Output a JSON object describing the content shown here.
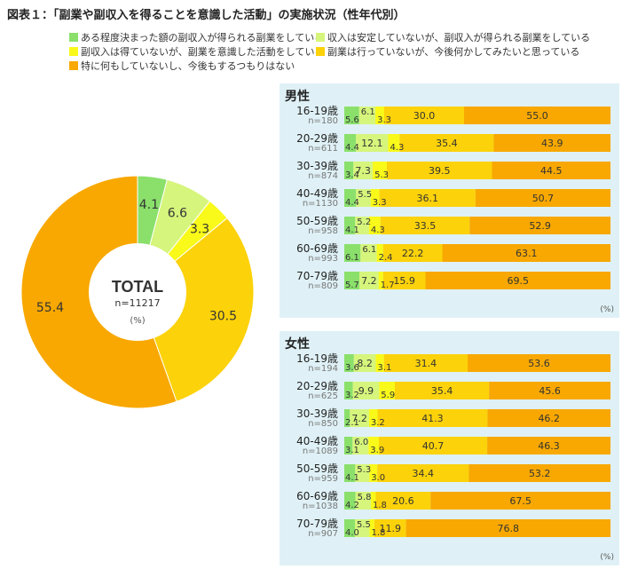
{
  "title": "図表１：「副業や副収入を得ることを意識した活動」の実施状況（性年代別）",
  "colors": [
    "#8ae06b",
    "#d6f57c",
    "#f9f91a",
    "#fcd20a",
    "#f8a800"
  ],
  "legend": [
    "ある程度決まった額の副収入が得られる副業をしている",
    "収入は安定していないが、副収入が得られる副業をしている",
    "副収入は得ていないが、副業を意識した活動をしている",
    "副業は行っていないが、今後何かしてみたいと思っている",
    "特に何もしていないし、今後もするつもりはない"
  ],
  "total": {
    "label": "TOTAL",
    "n": "n=11217",
    "unit": "(%)"
  },
  "male_title": "男性",
  "female_title": "女性",
  "unit": "(%)",
  "chart_data": [
    {
      "type": "pie",
      "title": "TOTAL",
      "values": [
        4.1,
        6.6,
        3.3,
        30.5,
        55.4
      ]
    },
    {
      "type": "bar",
      "title": "男性",
      "categories": [
        "16-19歳",
        "20-29歳",
        "30-39歳",
        "40-49歳",
        "50-59歳",
        "60-69歳",
        "70-79歳"
      ],
      "n": [
        "n=180",
        "n=611",
        "n=874",
        "n=1130",
        "n=958",
        "n=993",
        "n=809"
      ],
      "series": [
        {
          "values": [
            5.6,
            4.4,
            3.4,
            4.4,
            4.1,
            6.1,
            5.7
          ]
        },
        {
          "values": [
            6.1,
            12.1,
            7.3,
            5.5,
            5.2,
            6.1,
            7.2
          ]
        },
        {
          "values": [
            3.3,
            4.3,
            5.3,
            3.3,
            4.3,
            2.4,
            1.7
          ]
        },
        {
          "values": [
            30.0,
            35.4,
            39.5,
            36.1,
            33.5,
            22.2,
            15.9
          ]
        },
        {
          "values": [
            55.0,
            43.9,
            44.5,
            50.7,
            52.9,
            63.1,
            69.5
          ]
        }
      ]
    },
    {
      "type": "bar",
      "title": "女性",
      "categories": [
        "16-19歳",
        "20-29歳",
        "30-39歳",
        "40-49歳",
        "50-59歳",
        "60-69歳",
        "70-79歳"
      ],
      "n": [
        "n=194",
        "n=625",
        "n=850",
        "n=1089",
        "n=959",
        "n=1038",
        "n=907"
      ],
      "series": [
        {
          "values": [
            3.6,
            3.2,
            2.1,
            3.1,
            4.1,
            4.2,
            4.0
          ]
        },
        {
          "values": [
            8.2,
            9.9,
            7.2,
            6.0,
            5.3,
            5.8,
            5.5
          ]
        },
        {
          "values": [
            3.1,
            5.9,
            3.2,
            3.9,
            3.0,
            1.8,
            1.8
          ]
        },
        {
          "values": [
            31.4,
            35.4,
            41.3,
            40.7,
            34.4,
            20.6,
            11.9
          ]
        },
        {
          "values": [
            53.6,
            45.6,
            46.2,
            46.3,
            53.2,
            67.5,
            76.8
          ]
        }
      ]
    }
  ]
}
